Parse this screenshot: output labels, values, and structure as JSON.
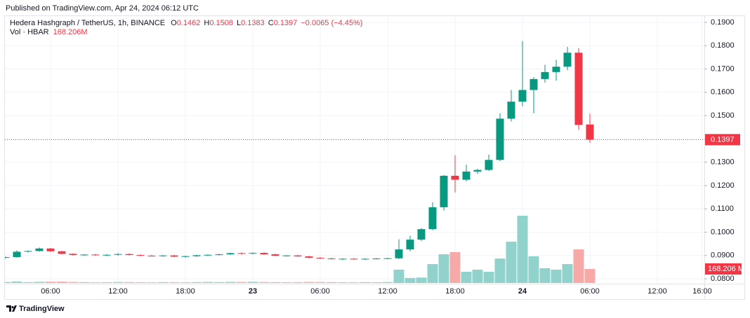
{
  "published": "Published on TradingView.com, Apr 24, 2024 06:12 UTC",
  "footer": "TradingView",
  "chart_data": {
    "type": "candlestick",
    "title": "Hedera Hashgraph / TetherUS, 1h, BINANCE",
    "ohlc_labels": [
      "O",
      "H",
      "L",
      "C"
    ],
    "change_label": "−0.0065 (−4.45%)",
    "volume_title": "Vol · HBAR",
    "volume_unit": "M",
    "categories": [
      null,
      null,
      null,
      null,
      "06:00",
      null,
      null,
      null,
      null,
      null,
      "12:00",
      null,
      null,
      null,
      null,
      null,
      "18:00",
      null,
      null,
      null,
      null,
      null,
      "23",
      null,
      null,
      null,
      null,
      null,
      "06:00",
      null,
      null,
      null,
      null,
      null,
      "12:00",
      null,
      null,
      null,
      null,
      null,
      "18:00",
      null,
      null,
      null,
      null,
      null,
      "24",
      null,
      null,
      null,
      null,
      null,
      "06:00",
      null,
      null,
      null,
      null,
      null,
      "12:00",
      null,
      null,
      null,
      "16:00"
    ],
    "open": [
      0.089,
      0.0893,
      0.0916,
      0.0919,
      0.093,
      0.0918,
      0.0907,
      0.0902,
      0.0904,
      0.0901,
      0.0903,
      0.0906,
      0.0902,
      0.0899,
      0.0897,
      0.09,
      0.0895,
      0.0897,
      0.0901,
      0.0903,
      0.0905,
      0.091,
      0.0908,
      0.0911,
      0.0905,
      0.0899,
      0.09,
      0.0896,
      0.089,
      0.0887,
      0.0885,
      0.0886,
      0.0884,
      0.0886,
      0.0887,
      0.0888,
      0.0926,
      0.0968,
      0.1013,
      0.1107,
      0.1242,
      0.1225,
      0.126,
      0.1267,
      0.131,
      0.1487,
      0.156,
      0.161,
      0.1657,
      0.1687,
      0.171,
      0.177,
      0.1462,
      null,
      null,
      null,
      null,
      null,
      null,
      null,
      null,
      null,
      null
    ],
    "high": [
      0.0895,
      0.0922,
      0.0922,
      0.0934,
      0.0932,
      0.092,
      0.0909,
      0.0906,
      0.0907,
      0.0906,
      0.091,
      0.0909,
      0.0905,
      0.0903,
      0.0902,
      0.0903,
      0.0899,
      0.0903,
      0.0905,
      0.0907,
      0.0912,
      0.0914,
      0.0913,
      0.0913,
      0.0908,
      0.0902,
      0.0903,
      0.0899,
      0.0893,
      0.089,
      0.0888,
      0.0889,
      0.0888,
      0.0889,
      0.089,
      0.097,
      0.0985,
      0.1018,
      0.1128,
      0.1245,
      0.133,
      0.129,
      0.1272,
      0.1333,
      0.151,
      0.161,
      0.182,
      0.1665,
      0.1718,
      0.174,
      0.1795,
      0.179,
      0.1508,
      null,
      null,
      null,
      null,
      null,
      null,
      null,
      null,
      null,
      null
    ],
    "low": [
      0.0887,
      0.0891,
      0.0913,
      0.0917,
      0.0915,
      0.0905,
      0.0899,
      0.0898,
      0.0899,
      0.0897,
      0.0899,
      0.09,
      0.0897,
      0.0895,
      0.0894,
      0.0893,
      0.0891,
      0.0894,
      0.0897,
      0.09,
      0.0902,
      0.0904,
      0.0905,
      0.0903,
      0.0897,
      0.0895,
      0.0894,
      0.0888,
      0.0885,
      0.0883,
      0.0881,
      0.0882,
      0.0881,
      0.0883,
      0.0884,
      0.0884,
      0.0918,
      0.0962,
      0.1008,
      0.1093,
      0.117,
      0.1218,
      0.125,
      0.1262,
      0.1305,
      0.1475,
      0.154,
      0.151,
      0.1642,
      0.165,
      0.1695,
      0.144,
      0.1383,
      null,
      null,
      null,
      null,
      null,
      null,
      null,
      null,
      null,
      null
    ],
    "close": [
      0.0893,
      0.0916,
      0.0919,
      0.093,
      0.0918,
      0.0907,
      0.0902,
      0.0904,
      0.0901,
      0.0903,
      0.0906,
      0.0902,
      0.0899,
      0.0897,
      0.09,
      0.0895,
      0.0897,
      0.0901,
      0.0903,
      0.0905,
      0.091,
      0.0908,
      0.0911,
      0.0905,
      0.0899,
      0.09,
      0.0896,
      0.089,
      0.0887,
      0.0885,
      0.0886,
      0.0884,
      0.0886,
      0.0887,
      0.0888,
      0.0926,
      0.0968,
      0.1013,
      0.1107,
      0.1242,
      0.1225,
      0.126,
      0.1267,
      0.131,
      0.1487,
      0.156,
      0.161,
      0.1657,
      0.1687,
      0.171,
      0.177,
      0.146,
      0.1397,
      null,
      null,
      null,
      null,
      null,
      null,
      null,
      null,
      null,
      null
    ],
    "volume": [
      12,
      18,
      10,
      14,
      15,
      16,
      12,
      10,
      8,
      9,
      11,
      10,
      9,
      8,
      10,
      9,
      8,
      10,
      12,
      11,
      13,
      12,
      14,
      11,
      10,
      9,
      10,
      12,
      11,
      10,
      9,
      8,
      10,
      9,
      11,
      160,
      60,
      65,
      227,
      345,
      370,
      135,
      160,
      135,
      294,
      496,
      807,
      320,
      177,
      160,
      227,
      403,
      168.206,
      null,
      null,
      null,
      null,
      null,
      null,
      null,
      null,
      null,
      null
    ],
    "up_color": "#089981",
    "down_color": "#f23645",
    "volume_up_color": "#92d2cc",
    "volume_down_color": "#f7a9a7",
    "ylim": [
      0.0779,
      0.193
    ],
    "yticks": [
      {
        "value": 0.19,
        "label": "0.1900"
      },
      {
        "value": 0.18,
        "label": "0.1800"
      },
      {
        "value": 0.17,
        "label": "0.1700"
      },
      {
        "value": 0.16,
        "label": "0.1600"
      },
      {
        "value": 0.15,
        "label": "0.1500"
      },
      {
        "value": 0.14,
        "label": "0.1400"
      },
      {
        "value": 0.13,
        "label": "0.1300"
      },
      {
        "value": 0.12,
        "label": "0.1200"
      },
      {
        "value": 0.11,
        "label": "0.1100"
      },
      {
        "value": 0.1,
        "label": "0.1000"
      },
      {
        "value": 0.09,
        "label": "0.0900"
      },
      {
        "value": 0.08,
        "label": "0.0800"
      }
    ],
    "grid": true
  }
}
